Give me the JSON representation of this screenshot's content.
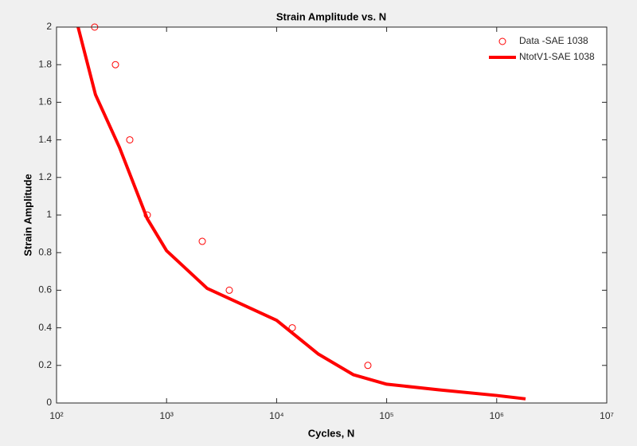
{
  "chart_data": {
    "type": "line",
    "title": "Strain Amplitude vs. N",
    "x_label": "Cycles, N",
    "y_label": "Strain Amplitude",
    "x_scale": "log",
    "xlim": [
      100,
      10000000
    ],
    "xticks": [
      {
        "value": 100,
        "label": "10²"
      },
      {
        "value": 1000,
        "label": "10³"
      },
      {
        "value": 10000,
        "label": "10⁴"
      },
      {
        "value": 100000,
        "label": "10⁵"
      },
      {
        "value": 1000000,
        "label": "10⁶"
      },
      {
        "value": 10000000,
        "label": "10⁷"
      }
    ],
    "ylim": [
      0,
      2
    ],
    "yticks": [
      0,
      0.2,
      0.4,
      0.6,
      0.8,
      1,
      1.2,
      1.4,
      1.6,
      1.8,
      2
    ],
    "legend": "top-right",
    "series": [
      {
        "name": "Data -SAE 1038",
        "type": "scatter",
        "color": "#ff0000",
        "x": [
          222,
          343,
          463,
          668,
          2110,
          3715,
          13870,
          67500
        ],
        "values": [
          2,
          1.8,
          1.4,
          1.0,
          0.86,
          0.6,
          0.4,
          0.2
        ]
      },
      {
        "name": "NtotV1-SAE 1038",
        "type": "line",
        "color": "#ff0000",
        "x": [
          157,
          226,
          373,
          668,
          1000,
          2335,
          10000,
          24000,
          50000,
          100000,
          300000,
          1000000,
          1830000
        ],
        "values": [
          2,
          1.64,
          1.36,
          0.98,
          0.81,
          0.61,
          0.44,
          0.26,
          0.15,
          0.1,
          0.07,
          0.04,
          0.022
        ]
      }
    ]
  }
}
